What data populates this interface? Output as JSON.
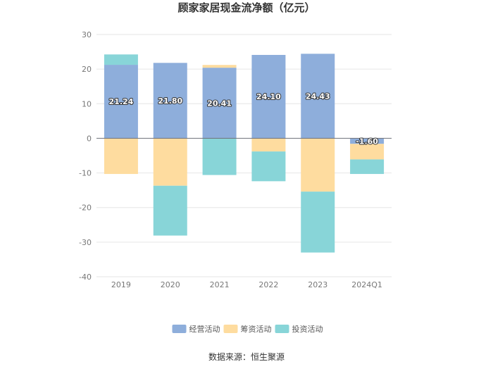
{
  "chart_data": {
    "type": "bar",
    "stacked": true,
    "title": "顾家家居现金流净额（亿元）",
    "xlabel": "",
    "ylabel": "",
    "categories": [
      "2019",
      "2020",
      "2021",
      "2022",
      "2023",
      "2024Q1"
    ],
    "ylim": [
      -40,
      30
    ],
    "yticks": [
      30,
      20,
      10,
      0,
      -10,
      -20,
      -30,
      -40
    ],
    "grid": true,
    "legend_position": "bottom",
    "series": [
      {
        "name": "经营活动",
        "color": "#8eaedb",
        "values": [
          21.24,
          21.8,
          20.41,
          24.1,
          24.43,
          -1.6
        ]
      },
      {
        "name": "筹资活动",
        "color": "#fedc9f",
        "values": [
          -10.3,
          -13.7,
          0.8,
          -3.8,
          -15.4,
          -4.5
        ]
      },
      {
        "name": "投资活动",
        "color": "#88d5d8",
        "values": [
          3.0,
          -14.4,
          -10.6,
          -8.6,
          -17.6,
          -4.2
        ]
      }
    ],
    "data_labels": [
      "21.24",
      "21.80",
      "20.41",
      "24.10",
      "24.43",
      "-1.60"
    ],
    "source": "数据来源：恒生聚源"
  }
}
